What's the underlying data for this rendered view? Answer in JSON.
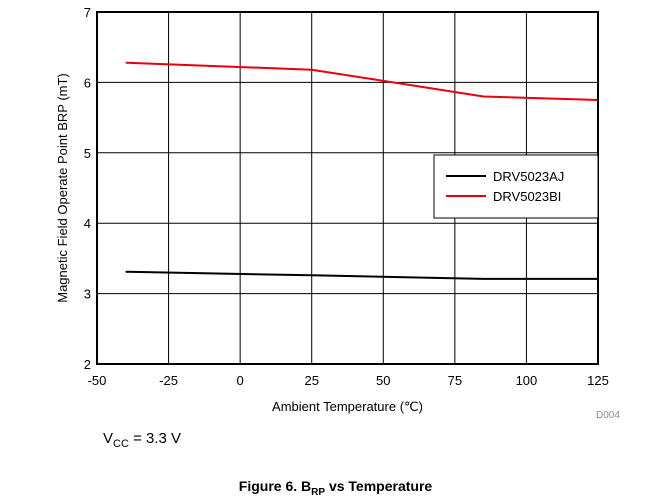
{
  "chart_data": {
    "type": "line",
    "xlabel": "Ambient Temperature (℃)",
    "ylabel": "Magnetic Field Operate Point BRP (mT)",
    "xlim": [
      -50,
      125
    ],
    "ylim": [
      2,
      7
    ],
    "xticks": [
      -50,
      -25,
      0,
      25,
      50,
      75,
      100,
      125
    ],
    "yticks": [
      2,
      3,
      4,
      5,
      6,
      7
    ],
    "grid": true,
    "legend_position": "middle-right",
    "series": [
      {
        "name": "DRV5023AJ",
        "color": "#000000",
        "x": [
          -40,
          25,
          85,
          125
        ],
        "y": [
          3.31,
          3.26,
          3.21,
          3.21
        ]
      },
      {
        "name": "DRV5023BI",
        "color": "#e8000b",
        "x": [
          -40,
          25,
          85,
          125
        ],
        "y": [
          6.28,
          6.18,
          5.8,
          5.75
        ]
      }
    ]
  },
  "figure_id": "D004",
  "condition": {
    "prefix": "V",
    "subscript": "CC",
    "suffix": " = 3.3 V"
  },
  "caption": {
    "prefix": "Figure 6. B",
    "subscript": "RP",
    "suffix": " vs Temperature"
  }
}
